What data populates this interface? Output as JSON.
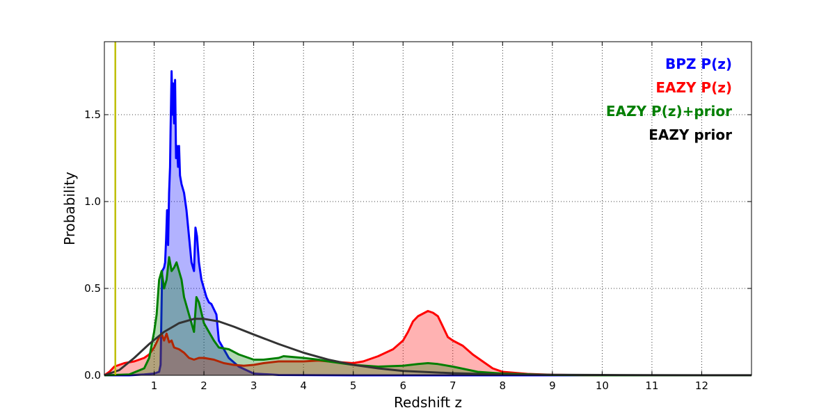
{
  "chart_data": {
    "type": "area",
    "xlabel": "Redshift z",
    "ylabel": "Probability",
    "xlim": [
      0,
      13
    ],
    "ylim": [
      0,
      1.92
    ],
    "xticks": [
      1,
      2,
      3,
      4,
      5,
      6,
      7,
      8,
      9,
      10,
      11,
      12
    ],
    "xtick_labels": [
      "1",
      "2",
      "3",
      "4",
      "5",
      "6",
      "7",
      "8",
      "9",
      "10",
      "11",
      "12"
    ],
    "yticks": [
      0,
      0.5,
      1.0,
      1.5
    ],
    "ytick_labels": [
      "0.0",
      "0.5",
      "1.0",
      "1.5"
    ],
    "grid": true,
    "legend_position": "top-right",
    "vline": {
      "x": 0.22,
      "color": "#bfbf00"
    },
    "series": [
      {
        "name": "BPZ P(z)",
        "color": "#0000ff",
        "fill": "#0000ff",
        "filled": true,
        "points": [
          [
            0,
            0
          ],
          [
            0.5,
            0
          ],
          [
            0.8,
            0.005
          ],
          [
            1.0,
            0.01
          ],
          [
            1.1,
            0.02
          ],
          [
            1.13,
            0.06
          ],
          [
            1.16,
            0.6
          ],
          [
            1.2,
            0.62
          ],
          [
            1.22,
            0.65
          ],
          [
            1.24,
            0.78
          ],
          [
            1.26,
            0.95
          ],
          [
            1.28,
            0.75
          ],
          [
            1.3,
            1.05
          ],
          [
            1.32,
            1.2
          ],
          [
            1.33,
            1.4
          ],
          [
            1.35,
            1.75
          ],
          [
            1.37,
            1.5
          ],
          [
            1.38,
            1.68
          ],
          [
            1.4,
            1.45
          ],
          [
            1.42,
            1.7
          ],
          [
            1.44,
            1.25
          ],
          [
            1.46,
            1.32
          ],
          [
            1.48,
            1.2
          ],
          [
            1.5,
            1.32
          ],
          [
            1.52,
            1.15
          ],
          [
            1.55,
            1.1
          ],
          [
            1.6,
            1.05
          ],
          [
            1.65,
            0.95
          ],
          [
            1.7,
            0.8
          ],
          [
            1.75,
            0.65
          ],
          [
            1.8,
            0.6
          ],
          [
            1.83,
            0.85
          ],
          [
            1.86,
            0.8
          ],
          [
            1.9,
            0.65
          ],
          [
            1.95,
            0.55
          ],
          [
            2.0,
            0.5
          ],
          [
            2.05,
            0.45
          ],
          [
            2.1,
            0.42
          ],
          [
            2.15,
            0.41
          ],
          [
            2.2,
            0.38
          ],
          [
            2.25,
            0.35
          ],
          [
            2.3,
            0.2
          ],
          [
            2.4,
            0.15
          ],
          [
            2.5,
            0.1
          ],
          [
            2.7,
            0.05
          ],
          [
            3.0,
            0.01
          ],
          [
            3.5,
            0.002
          ],
          [
            5,
            0
          ],
          [
            8,
            0
          ],
          [
            13,
            0
          ]
        ]
      },
      {
        "name": "EAZY P(z)",
        "color": "#ff0000",
        "fill": "#ff0000",
        "filled": true,
        "points": [
          [
            0,
            0.0
          ],
          [
            0.1,
            0.02
          ],
          [
            0.2,
            0.05
          ],
          [
            0.4,
            0.07
          ],
          [
            0.6,
            0.08
          ],
          [
            0.7,
            0.09
          ],
          [
            0.8,
            0.1
          ],
          [
            0.9,
            0.12
          ],
          [
            1.0,
            0.16
          ],
          [
            1.1,
            0.22
          ],
          [
            1.15,
            0.24
          ],
          [
            1.2,
            0.2
          ],
          [
            1.25,
            0.24
          ],
          [
            1.3,
            0.19
          ],
          [
            1.35,
            0.2
          ],
          [
            1.4,
            0.16
          ],
          [
            1.5,
            0.15
          ],
          [
            1.6,
            0.13
          ],
          [
            1.7,
            0.1
          ],
          [
            1.8,
            0.09
          ],
          [
            1.9,
            0.1
          ],
          [
            2.0,
            0.1
          ],
          [
            2.2,
            0.09
          ],
          [
            2.4,
            0.07
          ],
          [
            2.6,
            0.06
          ],
          [
            2.8,
            0.055
          ],
          [
            3.0,
            0.06
          ],
          [
            3.2,
            0.07
          ],
          [
            3.5,
            0.08
          ],
          [
            4.0,
            0.08
          ],
          [
            4.3,
            0.085
          ],
          [
            4.5,
            0.08
          ],
          [
            5.0,
            0.07
          ],
          [
            5.2,
            0.08
          ],
          [
            5.5,
            0.11
          ],
          [
            5.8,
            0.15
          ],
          [
            6.0,
            0.2
          ],
          [
            6.1,
            0.25
          ],
          [
            6.2,
            0.31
          ],
          [
            6.3,
            0.34
          ],
          [
            6.5,
            0.37
          ],
          [
            6.6,
            0.36
          ],
          [
            6.7,
            0.34
          ],
          [
            6.8,
            0.28
          ],
          [
            6.9,
            0.22
          ],
          [
            7.0,
            0.2
          ],
          [
            7.2,
            0.17
          ],
          [
            7.4,
            0.12
          ],
          [
            7.6,
            0.08
          ],
          [
            7.8,
            0.04
          ],
          [
            8.0,
            0.02
          ],
          [
            8.5,
            0.008
          ],
          [
            9.0,
            0.003
          ],
          [
            10,
            0
          ],
          [
            13,
            0
          ]
        ]
      },
      {
        "name": "EAZY P(z)+prior",
        "color": "#007f00",
        "fill": "#007f00",
        "filled": true,
        "points": [
          [
            0,
            0
          ],
          [
            0.5,
            0.005
          ],
          [
            0.8,
            0.04
          ],
          [
            0.9,
            0.1
          ],
          [
            1.0,
            0.25
          ],
          [
            1.05,
            0.35
          ],
          [
            1.1,
            0.55
          ],
          [
            1.15,
            0.6
          ],
          [
            1.2,
            0.5
          ],
          [
            1.25,
            0.55
          ],
          [
            1.3,
            0.68
          ],
          [
            1.35,
            0.6
          ],
          [
            1.4,
            0.62
          ],
          [
            1.45,
            0.65
          ],
          [
            1.5,
            0.6
          ],
          [
            1.55,
            0.55
          ],
          [
            1.6,
            0.45
          ],
          [
            1.7,
            0.35
          ],
          [
            1.8,
            0.25
          ],
          [
            1.85,
            0.45
          ],
          [
            1.9,
            0.42
          ],
          [
            2.0,
            0.3
          ],
          [
            2.1,
            0.25
          ],
          [
            2.2,
            0.2
          ],
          [
            2.3,
            0.16
          ],
          [
            2.5,
            0.15
          ],
          [
            2.7,
            0.12
          ],
          [
            3.0,
            0.09
          ],
          [
            3.2,
            0.09
          ],
          [
            3.5,
            0.1
          ],
          [
            3.6,
            0.11
          ],
          [
            4.0,
            0.1
          ],
          [
            4.3,
            0.09
          ],
          [
            4.5,
            0.08
          ],
          [
            5.0,
            0.06
          ],
          [
            5.5,
            0.05
          ],
          [
            6.0,
            0.055
          ],
          [
            6.3,
            0.065
          ],
          [
            6.5,
            0.07
          ],
          [
            6.7,
            0.065
          ],
          [
            7.0,
            0.05
          ],
          [
            7.5,
            0.02
          ],
          [
            8.0,
            0.01
          ],
          [
            9.0,
            0.002
          ],
          [
            10,
            0
          ],
          [
            13,
            0
          ]
        ]
      },
      {
        "name": "EAZY prior",
        "color": "#333333",
        "filled": false,
        "points": [
          [
            0,
            0.0
          ],
          [
            0.3,
            0.03
          ],
          [
            0.6,
            0.1
          ],
          [
            0.9,
            0.18
          ],
          [
            1.2,
            0.25
          ],
          [
            1.5,
            0.3
          ],
          [
            1.8,
            0.325
          ],
          [
            2.0,
            0.325
          ],
          [
            2.3,
            0.31
          ],
          [
            2.6,
            0.28
          ],
          [
            3.0,
            0.235
          ],
          [
            3.5,
            0.18
          ],
          [
            4.0,
            0.13
          ],
          [
            4.5,
            0.09
          ],
          [
            5.0,
            0.06
          ],
          [
            5.5,
            0.04
          ],
          [
            6.0,
            0.025
          ],
          [
            7.0,
            0.012
          ],
          [
            8.0,
            0.005
          ],
          [
            9.0,
            0.003
          ],
          [
            10,
            0.002
          ],
          [
            11,
            0.001
          ],
          [
            12,
            0.0005
          ],
          [
            13,
            0.0005
          ]
        ]
      }
    ]
  }
}
